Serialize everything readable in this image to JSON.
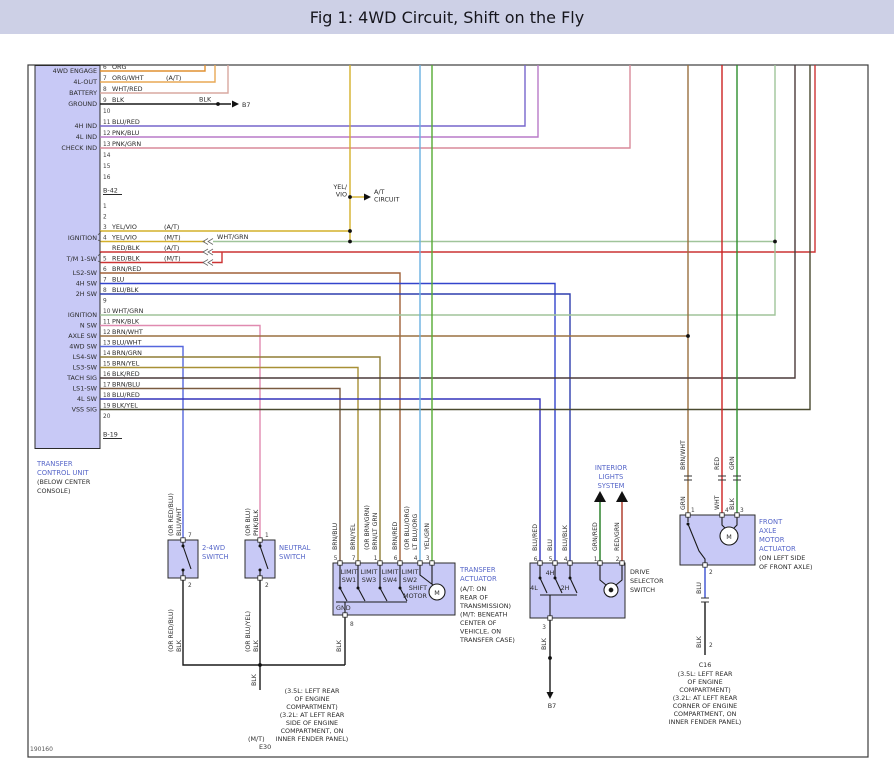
{
  "title": "Fig 1: 4WD Circuit, Shift on the Fly",
  "figure_code": "190160",
  "colors": {
    "header_bg": "#cdd0e6",
    "component_fill": "#c8c9f6",
    "caption_blue": "#5767c9"
  },
  "tcu": {
    "caption": [
      "TRANSFER",
      "CONTROL UNIT"
    ],
    "caption_note": [
      "(BELOW CENTER",
      "CONSOLE)"
    ],
    "connector_top": "B-42",
    "connector_bottom": "B-19",
    "ignition_label": "IGNITION",
    "tm1sw_label": "T/M 1-SW",
    "ignition_alt_wire": "WHT/GRN",
    "top_rows": [
      {
        "label": "4WD ENGAGE",
        "pin": "6",
        "wire": "ORG",
        "note": ""
      },
      {
        "label": "4L-OUT",
        "pin": "7",
        "wire": "ORG/WHT",
        "note": "(A/T)"
      },
      {
        "label": "BATTERY",
        "pin": "8",
        "wire": "WHT/RED",
        "note": ""
      },
      {
        "label": "GROUND",
        "pin": "9",
        "wire": "BLK",
        "note": ""
      },
      {
        "label": "",
        "pin": "10",
        "wire": "",
        "note": ""
      },
      {
        "label": "4H IND",
        "pin": "11",
        "wire": "BLU/RED",
        "note": ""
      },
      {
        "label": "4L IND",
        "pin": "12",
        "wire": "PNK/BLU",
        "note": ""
      },
      {
        "label": "CHECK IND",
        "pin": "13",
        "wire": "PNK/GRN",
        "note": ""
      },
      {
        "label": "",
        "pin": "14",
        "wire": "",
        "note": ""
      },
      {
        "label": "",
        "pin": "15",
        "wire": "",
        "note": ""
      },
      {
        "label": "",
        "pin": "16",
        "wire": "",
        "note": ""
      }
    ],
    "bottom_rows": [
      {
        "label": "",
        "pin": "1",
        "wire": "",
        "note": ""
      },
      {
        "label": "",
        "pin": "2",
        "wire": "",
        "note": ""
      },
      {
        "label": "",
        "pin": "3",
        "wire": "YEL/VIO",
        "note": "(A/T)"
      },
      {
        "label": "",
        "pin": "4",
        "wire": "YEL/VIO",
        "note": "(M/T)"
      },
      {
        "label": "",
        "pin": "",
        "wire": "RED/BLK",
        "note": "(A/T)"
      },
      {
        "label": "",
        "pin": "5",
        "wire": "RED/BLK",
        "note": "(M/T)"
      },
      {
        "label": "LS2-SW",
        "pin": "6",
        "wire": "BRN/RED",
        "note": ""
      },
      {
        "label": "4H SW",
        "pin": "7",
        "wire": "BLU",
        "note": ""
      },
      {
        "label": "2H SW",
        "pin": "8",
        "wire": "BLU/BLK",
        "note": ""
      },
      {
        "label": "",
        "pin": "9",
        "wire": "",
        "note": ""
      },
      {
        "label": "IGNITION",
        "pin": "10",
        "wire": "WHT/GRN",
        "note": ""
      },
      {
        "label": "N SW",
        "pin": "11",
        "wire": "PNK/BLK",
        "note": ""
      },
      {
        "label": "AXLE SW",
        "pin": "12",
        "wire": "BRN/WHT",
        "note": ""
      },
      {
        "label": "4WD SW",
        "pin": "13",
        "wire": "BLU/WHT",
        "note": ""
      },
      {
        "label": "LS4-SW",
        "pin": "14",
        "wire": "BRN/GRN",
        "note": ""
      },
      {
        "label": "LS3-SW",
        "pin": "15",
        "wire": "BRN/YEL",
        "note": ""
      },
      {
        "label": "TACH SIG",
        "pin": "16",
        "wire": "BLK/RED",
        "note": ""
      },
      {
        "label": "LS1-SW",
        "pin": "17",
        "wire": "BRN/BLU",
        "note": ""
      },
      {
        "label": "4L SW",
        "pin": "18",
        "wire": "BLU/RED",
        "note": ""
      },
      {
        "label": "VSS SIG",
        "pin": "19",
        "wire": "BLK/YEL",
        "note": ""
      },
      {
        "label": "",
        "pin": "20",
        "wire": "",
        "note": ""
      }
    ]
  },
  "at_circuit": {
    "wire_top": "YEL/",
    "wire_bottom": "VIO",
    "label": [
      "A/T",
      "CIRCUIT"
    ]
  },
  "markers": {
    "blk_ground": "BLK",
    "b7_top": "B7",
    "b7_bottom": "B7"
  },
  "interior_lights": {
    "caption": [
      "INTERIOR",
      "LIGHTS",
      "SYSTEM"
    ]
  },
  "switch24": {
    "caption": [
      "2-4WD",
      "SWITCH"
    ],
    "pin_top": "7",
    "wire_top_alt": "(OR RED/BLU)",
    "wire_top": "BLU/WHT",
    "pin_bottom": "2",
    "wire_bottom_alt": "(OR RED/BLU)",
    "wire_bottom": "BLK"
  },
  "neutral": {
    "caption": [
      "NEUTRAL",
      "SWITCH"
    ],
    "pin_top": "1",
    "wire_top_alt": "(OR BLU)",
    "wire_top": "PNK/BLK",
    "pin_bottom": "2",
    "wire_bottom_alt": "(OR BLU/YEL)",
    "wire_bottom": "BLK"
  },
  "actuator": {
    "caption": [
      "TRANSFER",
      "ACTUATOR"
    ],
    "note": [
      "(A/T: ON",
      "REAR OF",
      "TRANSMISSION)",
      "(M/T: BENEATH",
      "CENTER OF",
      "VEHICLE, ON",
      "TRANSFER CASE)"
    ],
    "pins": [
      "5",
      "7",
      "1",
      "6",
      "4",
      "3"
    ],
    "wires": [
      "BRN/BLU",
      "BRN/YEL",
      "BRN/LT GRN",
      "BRN/RED",
      "LT BLU/ORG",
      "YEL/GRN"
    ],
    "alts": [
      "",
      "",
      "(OR BRN/GRN)",
      "",
      "(OR BLU/ORG)",
      ""
    ],
    "switches": [
      [
        "LIMIT",
        "SW1"
      ],
      [
        "LIMIT",
        "SW3"
      ],
      [
        "LIMIT",
        "SW4"
      ],
      [
        "LIMIT",
        "SW2"
      ]
    ],
    "gnd": "GND",
    "motor": [
      "SHIFT",
      "MOTOR"
    ],
    "m": "M",
    "pin_gnd": "8",
    "wire_gnd": "BLK"
  },
  "drive": {
    "caption": [
      "DRIVE",
      "SELECTOR",
      "SWITCH"
    ],
    "pins": [
      "6",
      "5",
      "4",
      "1",
      "2"
    ],
    "wires": [
      "BLU/RED",
      "BLU",
      "BLU/BLK",
      "GRN/RED",
      "RED/GRN"
    ],
    "positions": [
      "4L",
      "4H",
      "2H"
    ],
    "pin_bottom": "3",
    "wire_bottom": "BLK"
  },
  "front_axle": {
    "caption": [
      "FRONT",
      "AXLE",
      "MOTOR",
      "ACTUATOR"
    ],
    "note": [
      "(ON LEFT SIDE",
      "OF FRONT AXLE)"
    ],
    "wires_upper": [
      "BRN/WHT",
      "RED",
      "GRN"
    ],
    "wires_lower": [
      "GRN",
      "WHT",
      "BLK"
    ],
    "pins": [
      "1",
      "4",
      "3"
    ],
    "pin_bottom": "2",
    "wire_seg1": "BLU",
    "wire_seg2": "BLK",
    "pin_c16": "2",
    "m": "M"
  },
  "grounds": {
    "left_note": [
      "(3.5L: LEFT REAR",
      "OF ENGINE",
      "COMPARTMENT)",
      "(3.2L: AT LEFT REAR",
      "SIDE OF ENGINE",
      "COMPARTMENT, ON",
      "INNER FENDER PANEL)"
    ],
    "left_mt": "(M/T)",
    "left_id": "E30",
    "join_wire": "BLK",
    "c16_id": "C16",
    "c16_note": [
      "(3.5L: LEFT REAR",
      "OF ENGINE",
      "COMPARTMENT)",
      "(3.2L: AT LEFT REAR",
      "CORNER OF ENGINE",
      "COMPARTMENT, ON",
      "INNER FENDER PANEL)"
    ]
  }
}
